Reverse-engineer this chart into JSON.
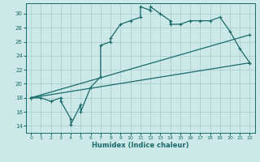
{
  "xlabel": "Humidex (Indice chaleur)",
  "xlim": [
    -0.5,
    22.5
  ],
  "ylim": [
    13,
    31.5
  ],
  "xticks": [
    0,
    1,
    2,
    3,
    4,
    5,
    6,
    7,
    8,
    9,
    10,
    11,
    12,
    13,
    14,
    15,
    16,
    17,
    18,
    19,
    20,
    21,
    22
  ],
  "yticks": [
    14,
    16,
    18,
    20,
    22,
    24,
    26,
    28,
    30
  ],
  "bg_color": "#cce8e8",
  "grid_color": "#aacece",
  "line_color": "#1a6b6b",
  "line1_x": [
    0,
    1,
    2,
    3,
    3,
    4,
    4,
    5,
    5,
    6,
    7,
    7,
    8,
    8,
    9,
    10,
    11,
    11,
    12,
    12,
    13,
    14,
    14,
    15,
    16,
    17,
    18,
    19,
    20,
    21,
    22
  ],
  "line1_y": [
    18,
    18,
    17.5,
    18,
    17.5,
    15,
    14.2,
    17,
    16,
    19.5,
    21,
    25.5,
    26,
    26.5,
    28.5,
    29,
    29.5,
    31,
    30.5,
    31,
    30,
    29,
    28.5,
    28.5,
    29,
    29,
    29,
    29.5,
    27.5,
    25,
    23
  ],
  "line2_x": [
    0,
    22
  ],
  "line2_y": [
    18,
    27
  ],
  "line3_x": [
    0,
    22
  ],
  "line3_y": [
    18,
    23
  ],
  "marker": "D",
  "markersize": 2.0,
  "linewidth": 0.9
}
